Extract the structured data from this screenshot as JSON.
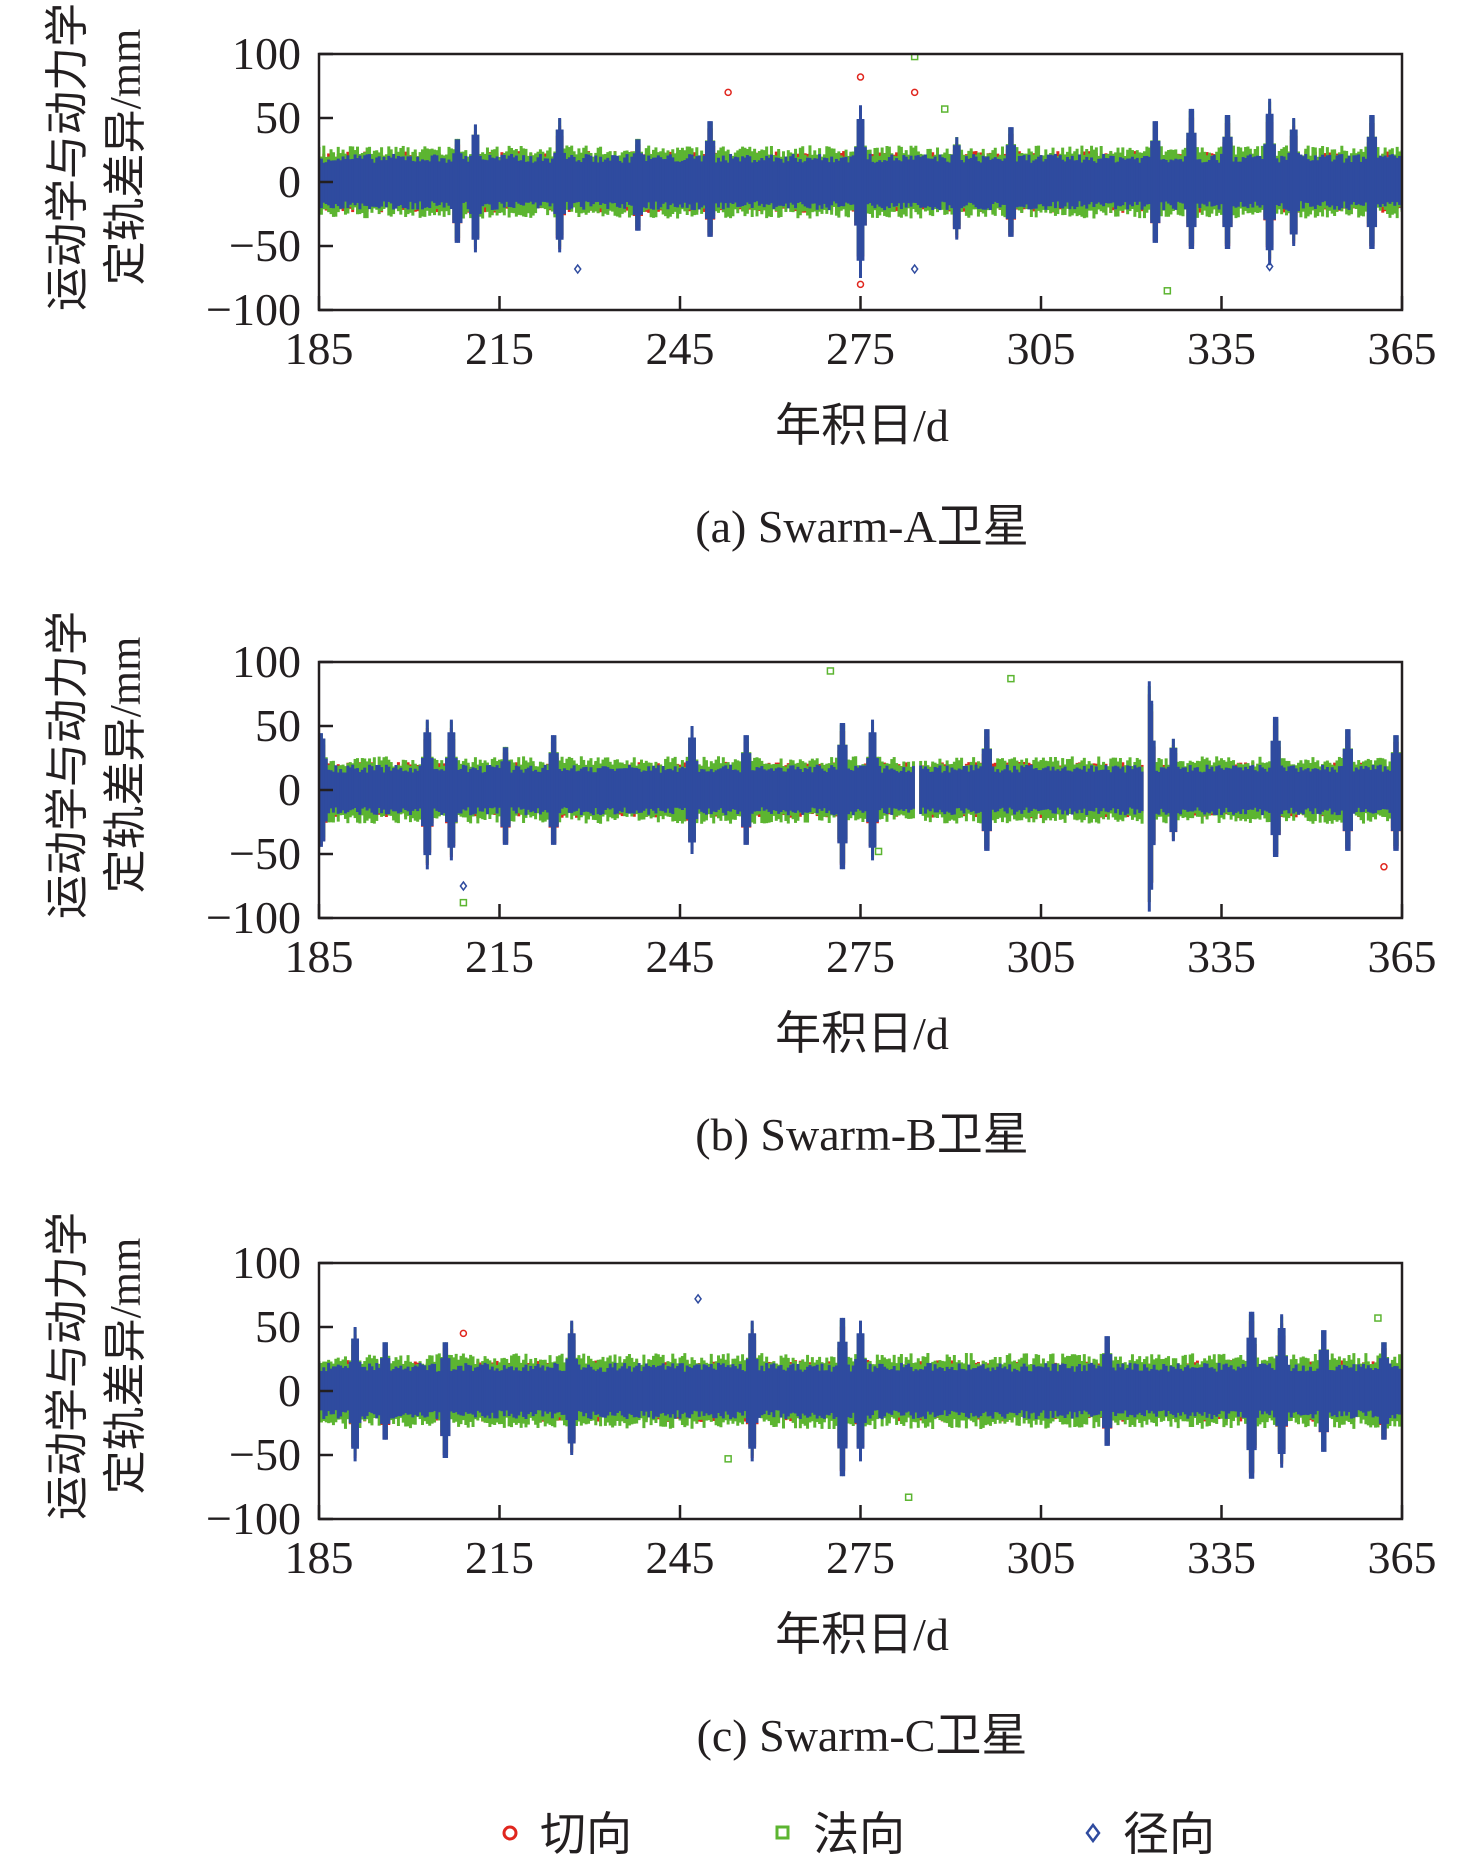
{
  "colors": {
    "tangential": "#e0261e",
    "normal": "#5cb531",
    "radial": "#2f4b9f",
    "axis": "#231f20"
  },
  "legend": [
    {
      "label": "切向",
      "marker": "circle",
      "color_key": "tangential"
    },
    {
      "label": "法向",
      "marker": "square",
      "color_key": "normal"
    },
    {
      "label": "径向",
      "marker": "diamond",
      "color_key": "radial"
    }
  ],
  "chart_data": [
    {
      "type": "scatter",
      "caption": "(a) Swarm-A卫星",
      "xlabel": "年积日/d",
      "ylabel_lines": [
        "运动学与动力学",
        "定轨差异/mm"
      ],
      "xlim": [
        185,
        365
      ],
      "ylim": [
        -100,
        100
      ],
      "xticks": [
        "185",
        "215",
        "245",
        "275",
        "305",
        "335",
        "365"
      ],
      "yticks": [
        "100",
        "50",
        "0",
        "−50",
        "−100"
      ],
      "series_names": [
        "切向",
        "法向",
        "径向"
      ],
      "base_band": {
        "切向": 22,
        "法向": 26,
        "径向": 20
      },
      "gaps": [],
      "bursts": [
        [
          208,
          35,
          -50
        ],
        [
          211,
          45,
          -55
        ],
        [
          225,
          50,
          -55
        ],
        [
          238,
          35,
          -40
        ],
        [
          250,
          50,
          -45
        ],
        [
          275,
          60,
          -75
        ],
        [
          291,
          35,
          -45
        ],
        [
          300,
          45,
          -45
        ],
        [
          324,
          50,
          -50
        ],
        [
          330,
          60,
          -55
        ],
        [
          336,
          55,
          -55
        ],
        [
          343,
          65,
          -65
        ],
        [
          347,
          50,
          -50
        ],
        [
          360,
          55,
          -55
        ]
      ],
      "outliers": [
        [
          253,
          70,
          "切向"
        ],
        [
          275,
          82,
          "切向"
        ],
        [
          275,
          -80,
          "切向"
        ],
        [
          284,
          70,
          "切向"
        ],
        [
          284,
          98,
          "法向"
        ],
        [
          326,
          -85,
          "法向"
        ],
        [
          228,
          -68,
          "径向"
        ],
        [
          284,
          -68,
          "径向"
        ],
        [
          343,
          -66,
          "径向"
        ],
        [
          289,
          57,
          "法向"
        ]
      ]
    },
    {
      "type": "scatter",
      "caption": "(b) Swarm-B卫星",
      "xlabel": "年积日/d",
      "ylabel_lines": [
        "运动学与动力学",
        "定轨差异/mm"
      ],
      "xlim": [
        185,
        365
      ],
      "ylim": [
        -100,
        100
      ],
      "xticks": [
        "185",
        "215",
        "245",
        "275",
        "305",
        "335",
        "365"
      ],
      "yticks": [
        "100",
        "50",
        "0",
        "−50",
        "−100"
      ],
      "series_names": [
        "切向",
        "法向",
        "径向"
      ],
      "base_band": {
        "切向": 20,
        "法向": 24,
        "径向": 18
      },
      "gaps": [
        284.5,
        322.5
      ],
      "bursts": [
        [
          185.5,
          45,
          -45
        ],
        [
          203,
          55,
          -62
        ],
        [
          207,
          55,
          -55
        ],
        [
          216,
          35,
          -45
        ],
        [
          224,
          45,
          -45
        ],
        [
          247,
          50,
          -50
        ],
        [
          256,
          45,
          -45
        ],
        [
          272,
          55,
          -65
        ],
        [
          277,
          55,
          -55
        ],
        [
          296,
          50,
          -50
        ],
        [
          323,
          85,
          -95
        ],
        [
          327,
          40,
          -40
        ],
        [
          344,
          60,
          -55
        ],
        [
          356,
          50,
          -50
        ],
        [
          364,
          45,
          -50
        ]
      ],
      "outliers": [
        [
          270,
          93,
          "法向"
        ],
        [
          300,
          87,
          "法向"
        ],
        [
          209,
          -88,
          "法向"
        ],
        [
          278,
          -48,
          "法向"
        ],
        [
          209,
          -75,
          "径向"
        ],
        [
          362,
          -60,
          "切向"
        ]
      ]
    },
    {
      "type": "scatter",
      "caption": "(c) Swarm-C卫星",
      "xlabel": "年积日/d",
      "ylabel_lines": [
        "运动学与动力学",
        "定轨差异/mm"
      ],
      "xlim": [
        185,
        365
      ],
      "ylim": [
        -100,
        100
      ],
      "xticks": [
        "185",
        "215",
        "245",
        "275",
        "305",
        "335",
        "365"
      ],
      "yticks": [
        "100",
        "50",
        "0",
        "−50",
        "−100"
      ],
      "series_names": [
        "切向",
        "法向",
        "径向"
      ],
      "base_band": {
        "切向": 22,
        "法向": 27,
        "径向": 20
      },
      "gaps": [],
      "bursts": [
        [
          191,
          50,
          -55
        ],
        [
          196,
          40,
          -40
        ],
        [
          206,
          40,
          -55
        ],
        [
          227,
          55,
          -50
        ],
        [
          257,
          55,
          -55
        ],
        [
          272,
          60,
          -70
        ],
        [
          275,
          55,
          -55
        ],
        [
          316,
          45,
          -45
        ],
        [
          340,
          65,
          -72
        ],
        [
          345,
          60,
          -60
        ],
        [
          352,
          50,
          -50
        ],
        [
          362,
          40,
          -40
        ]
      ],
      "outliers": [
        [
          248,
          72,
          "径向"
        ],
        [
          283,
          -83,
          "法向"
        ],
        [
          253,
          -53,
          "法向"
        ],
        [
          361,
          57,
          "法向"
        ],
        [
          209,
          45,
          "切向"
        ]
      ]
    }
  ]
}
